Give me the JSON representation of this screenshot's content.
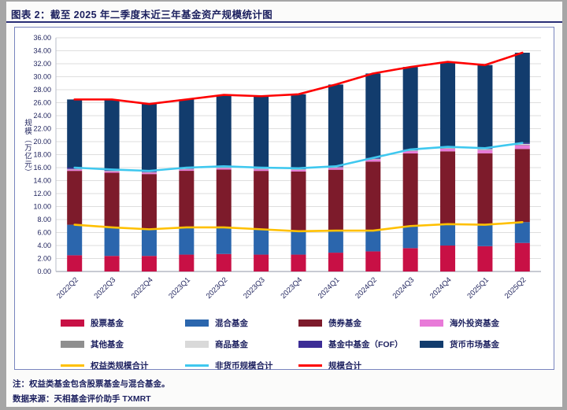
{
  "title": "图表 2：截至 2025 年二季度末近三年基金资产规模统计图",
  "notes": {
    "note1": "注：权益类基金包含股票基金与混合基金。",
    "source": "数据来源：天相基金评价助手 TXMRT"
  },
  "chart_data": {
    "type": "bar",
    "subtype": "stacked-bars-with-lines",
    "title": "图表 2：截至 2025 年二季度末近三年基金资产规模统计图",
    "xlabel": "",
    "ylabel": "规模（万亿元）",
    "ylim": [
      0,
      36
    ],
    "ytick_step": 2,
    "grid": true,
    "legend_position": "bottom",
    "categories": [
      "2022Q2",
      "2022Q3",
      "2022Q4",
      "2023Q1",
      "2023Q2",
      "2023Q3",
      "2023Q4",
      "2024Q1",
      "2024Q2",
      "2024Q3",
      "2024Q4",
      "2025Q1",
      "2025Q2"
    ],
    "bar_series": [
      {
        "name": "股票基金",
        "color": "#c81045",
        "values": [
          2.5,
          2.4,
          2.4,
          2.6,
          2.7,
          2.6,
          2.6,
          2.9,
          3.1,
          3.6,
          4.0,
          3.9,
          4.4
        ]
      },
      {
        "name": "混合基金",
        "color": "#2b66ad",
        "values": [
          4.7,
          4.4,
          4.1,
          4.2,
          4.1,
          3.9,
          3.6,
          3.4,
          3.2,
          3.4,
          3.3,
          3.3,
          3.2
        ]
      },
      {
        "name": "债券基金",
        "color": "#7d1b2b",
        "values": [
          8.3,
          8.41,
          8.51,
          8.71,
          8.9,
          9.0,
          9.2,
          9.38,
          10.63,
          11.19,
          11.21,
          11.01,
          11.28
        ]
      },
      {
        "name": "海外投资基金",
        "color": "#e87ad8",
        "values": [
          0.2,
          0.2,
          0.21,
          0.22,
          0.23,
          0.24,
          0.25,
          0.28,
          0.32,
          0.36,
          0.42,
          0.5,
          0.58
        ]
      },
      {
        "name": "其他基金",
        "color": "#8f8f8f",
        "values": [
          0.05,
          0.05,
          0.05,
          0.05,
          0.05,
          0.05,
          0.05,
          0.05,
          0.05,
          0.05,
          0.05,
          0.05,
          0.05
        ]
      },
      {
        "name": "商品基金",
        "color": "#d9d9d9",
        "values": [
          0.04,
          0.04,
          0.04,
          0.04,
          0.05,
          0.05,
          0.05,
          0.05,
          0.06,
          0.06,
          0.08,
          0.1,
          0.14
        ]
      },
      {
        "name": "基金中基金（FOF）",
        "color": "#3c2d96",
        "values": [
          0.21,
          0.2,
          0.19,
          0.18,
          0.17,
          0.16,
          0.15,
          0.14,
          0.14,
          0.14,
          0.14,
          0.14,
          0.15
        ]
      },
      {
        "name": "货币市场基金",
        "color": "#123c6d",
        "values": [
          10.5,
          10.8,
          10.3,
          10.5,
          11.0,
          11.0,
          11.4,
          12.6,
          13.0,
          12.7,
          13.1,
          12.8,
          13.9
        ]
      }
    ],
    "line_series": [
      {
        "name": "权益类规模合计",
        "color": "#ffc000",
        "values": [
          7.2,
          6.8,
          6.5,
          6.8,
          6.8,
          6.5,
          6.2,
          6.3,
          6.3,
          7.0,
          7.3,
          7.2,
          7.6
        ]
      },
      {
        "name": "非货币规模合计",
        "color": "#3fc8ef",
        "values": [
          16.0,
          15.7,
          15.5,
          16.0,
          16.2,
          16.0,
          15.9,
          16.2,
          17.5,
          18.8,
          19.2,
          19.0,
          19.8
        ]
      },
      {
        "name": "规模合计",
        "color": "#fe0000",
        "values": [
          26.5,
          26.5,
          25.8,
          26.5,
          27.2,
          27.0,
          27.3,
          28.8,
          30.5,
          31.5,
          32.3,
          31.8,
          33.7
        ]
      }
    ]
  }
}
